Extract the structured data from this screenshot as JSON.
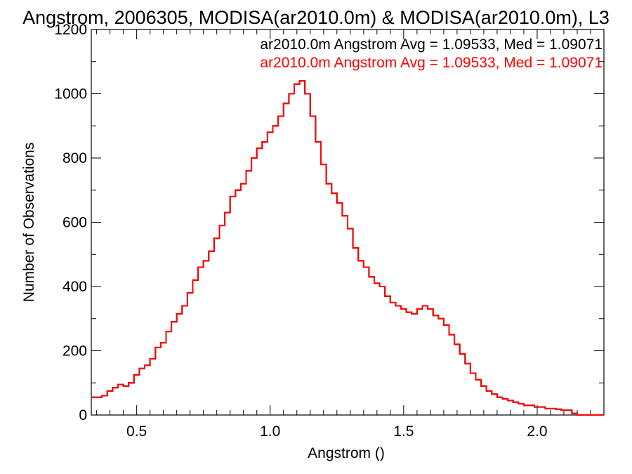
{
  "chart_data": {
    "type": "line",
    "title": "Angstrom, 2006305, MODISA(ar2010.0m) & MODISA(ar2010.0m), L3",
    "xlabel": "Angstrom ()",
    "ylabel": "Number of Observations",
    "xlim": [
      0.33,
      2.25
    ],
    "ylim": [
      0,
      1200
    ],
    "xticks": [
      0.5,
      1.0,
      1.5,
      2.0
    ],
    "xtick_labels": [
      "0.5",
      "1.0",
      "1.5",
      "2.0"
    ],
    "yticks": [
      0,
      200,
      400,
      600,
      800,
      1000,
      1200
    ],
    "ytick_labels": [
      "0",
      "200",
      "400",
      "600",
      "800",
      "1000",
      "1200"
    ],
    "grid": false,
    "legend_placement": "top-right",
    "series": [
      {
        "name": "ar2010.0m Angstrom Avg = 1.09533, Med = 1.09071",
        "color": "#000000",
        "x": [
          0.33,
          0.35,
          0.37,
          0.39,
          0.41,
          0.43,
          0.45,
          0.47,
          0.49,
          0.51,
          0.53,
          0.55,
          0.57,
          0.59,
          0.61,
          0.63,
          0.65,
          0.67,
          0.69,
          0.71,
          0.73,
          0.75,
          0.77,
          0.79,
          0.81,
          0.83,
          0.85,
          0.87,
          0.89,
          0.91,
          0.93,
          0.95,
          0.97,
          0.99,
          1.01,
          1.03,
          1.05,
          1.07,
          1.09,
          1.11,
          1.13,
          1.15,
          1.17,
          1.19,
          1.21,
          1.23,
          1.25,
          1.27,
          1.29,
          1.31,
          1.33,
          1.35,
          1.37,
          1.39,
          1.41,
          1.43,
          1.45,
          1.47,
          1.49,
          1.51,
          1.53,
          1.55,
          1.57,
          1.59,
          1.61,
          1.63,
          1.65,
          1.67,
          1.69,
          1.71,
          1.73,
          1.75,
          1.77,
          1.79,
          1.81,
          1.83,
          1.85,
          1.87,
          1.89,
          1.91,
          1.93,
          1.95,
          1.97,
          1.99,
          2.01,
          2.03,
          2.05,
          2.07,
          2.09,
          2.11,
          2.13,
          2.15,
          2.17,
          2.19,
          2.21,
          2.23,
          2.25
        ],
        "y": [
          55,
          55,
          60,
          75,
          85,
          95,
          90,
          100,
          125,
          145,
          155,
          175,
          210,
          225,
          260,
          290,
          315,
          340,
          380,
          420,
          460,
          480,
          510,
          550,
          590,
          630,
          680,
          700,
          720,
          760,
          800,
          830,
          850,
          880,
          900,
          930,
          970,
          1000,
          1030,
          1040,
          1000,
          930,
          850,
          780,
          720,
          690,
          660,
          620,
          580,
          520,
          480,
          460,
          430,
          410,
          400,
          370,
          350,
          340,
          330,
          320,
          315,
          330,
          340,
          330,
          310,
          300,
          280,
          250,
          220,
          190,
          160,
          130,
          110,
          90,
          75,
          65,
          55,
          50,
          45,
          40,
          35,
          30,
          30,
          25,
          25,
          20,
          20,
          18,
          15,
          15,
          5,
          0,
          0,
          0,
          0,
          0,
          0
        ]
      },
      {
        "name": "ar2010.0m Angstrom Avg = 1.09533, Med = 1.09071",
        "color": "#ff0000",
        "x": [
          0.33,
          0.35,
          0.37,
          0.39,
          0.41,
          0.43,
          0.45,
          0.47,
          0.49,
          0.51,
          0.53,
          0.55,
          0.57,
          0.59,
          0.61,
          0.63,
          0.65,
          0.67,
          0.69,
          0.71,
          0.73,
          0.75,
          0.77,
          0.79,
          0.81,
          0.83,
          0.85,
          0.87,
          0.89,
          0.91,
          0.93,
          0.95,
          0.97,
          0.99,
          1.01,
          1.03,
          1.05,
          1.07,
          1.09,
          1.11,
          1.13,
          1.15,
          1.17,
          1.19,
          1.21,
          1.23,
          1.25,
          1.27,
          1.29,
          1.31,
          1.33,
          1.35,
          1.37,
          1.39,
          1.41,
          1.43,
          1.45,
          1.47,
          1.49,
          1.51,
          1.53,
          1.55,
          1.57,
          1.59,
          1.61,
          1.63,
          1.65,
          1.67,
          1.69,
          1.71,
          1.73,
          1.75,
          1.77,
          1.79,
          1.81,
          1.83,
          1.85,
          1.87,
          1.89,
          1.91,
          1.93,
          1.95,
          1.97,
          1.99,
          2.01,
          2.03,
          2.05,
          2.07,
          2.09,
          2.11,
          2.13,
          2.15,
          2.17,
          2.19,
          2.21,
          2.23,
          2.25
        ],
        "y": [
          55,
          55,
          60,
          75,
          85,
          95,
          90,
          100,
          125,
          145,
          155,
          175,
          210,
          225,
          260,
          290,
          315,
          340,
          380,
          420,
          460,
          480,
          510,
          550,
          590,
          630,
          680,
          700,
          720,
          760,
          800,
          830,
          850,
          880,
          900,
          930,
          970,
          1000,
          1030,
          1040,
          1000,
          930,
          850,
          780,
          720,
          690,
          660,
          620,
          580,
          520,
          480,
          460,
          430,
          410,
          400,
          370,
          350,
          340,
          330,
          320,
          315,
          330,
          340,
          330,
          310,
          300,
          280,
          250,
          220,
          190,
          160,
          130,
          110,
          90,
          75,
          65,
          55,
          50,
          45,
          40,
          35,
          30,
          30,
          25,
          25,
          20,
          20,
          18,
          15,
          15,
          5,
          0,
          0,
          0,
          0,
          0,
          0
        ]
      }
    ]
  }
}
